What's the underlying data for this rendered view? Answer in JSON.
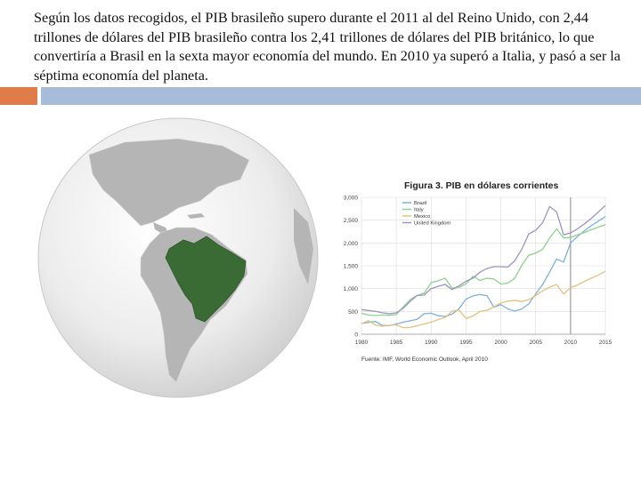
{
  "slide": {
    "paragraph": "Según los datos recogidos, el PIB brasileño supero durante el 2011 al del Reino Unido, con 2,44 trillones de dólares del PIB brasileño contra los 2,41 trillones de dólares del PIB británico, lo que convertiría a Brasil en la sexta mayor economía del mundo. En 2010 ya superó a Italia, y pasó a ser la séptima economía del planeta."
  },
  "colors": {
    "accent_orange": "#e07c4a",
    "accent_blue": "#a7bcd8",
    "brazil_green": "#3a6b35"
  },
  "chart_data": {
    "type": "line",
    "title": "Figura 3. PIB en dólares corrientes",
    "source": "Fuente: IMF, World Economic Outlook, April 2010",
    "xlim": [
      1980,
      2015
    ],
    "ylim": [
      0,
      3000
    ],
    "x_ticks": [
      "1980",
      "1985",
      "1990",
      "1995",
      "2000",
      "2005",
      "2010",
      "2015"
    ],
    "y_ticks": [
      "0",
      "500",
      "1,000",
      "1,500",
      "2,000",
      "2,500",
      "3,000"
    ],
    "grid": true,
    "legend": "top-left",
    "vline": 2010,
    "series": [
      {
        "name": "Brazil",
        "color": "#7eb0dc",
        "x": [
          1980,
          1981,
          1982,
          1983,
          1984,
          1985,
          1986,
          1987,
          1988,
          1989,
          1990,
          1991,
          1992,
          1993,
          1994,
          1995,
          1996,
          1997,
          1998,
          1999,
          2000,
          2001,
          2002,
          2003,
          2004,
          2005,
          2006,
          2007,
          2008,
          2009,
          2010,
          2011,
          2012,
          2013,
          2014,
          2015
        ],
        "y": [
          235,
          260,
          280,
          190,
          190,
          222,
          265,
          295,
          330,
          450,
          460,
          405,
          390,
          440,
          560,
          770,
          840,
          870,
          845,
          590,
          650,
          555,
          505,
          555,
          665,
          880,
          1090,
          1365,
          1650,
          1580,
          2000,
          2140,
          2270,
          2380,
          2480,
          2580
        ]
      },
      {
        "name": "Italy",
        "color": "#8ed08e",
        "x": [
          1980,
          1981,
          1982,
          1983,
          1984,
          1985,
          1986,
          1987,
          1988,
          1989,
          1990,
          1991,
          1992,
          1993,
          1994,
          1995,
          1996,
          1997,
          1998,
          1999,
          2000,
          2001,
          2002,
          2003,
          2004,
          2005,
          2006,
          2007,
          2008,
          2009,
          2010,
          2011,
          2012,
          2013,
          2014,
          2015
        ],
        "y": [
          460,
          420,
          410,
          420,
          415,
          430,
          600,
          760,
          850,
          900,
          1130,
          1170,
          1230,
          1010,
          1030,
          1100,
          1270,
          1180,
          1230,
          1210,
          1100,
          1120,
          1230,
          1510,
          1730,
          1780,
          1860,
          2110,
          2310,
          2110,
          2120,
          2180,
          2230,
          2290,
          2350,
          2400
        ]
      },
      {
        "name": "Mexico",
        "color": "#e3c27c",
        "x": [
          1980,
          1981,
          1982,
          1983,
          1984,
          1985,
          1986,
          1987,
          1988,
          1989,
          1990,
          1991,
          1992,
          1993,
          1994,
          1995,
          1996,
          1997,
          1998,
          1999,
          2000,
          2001,
          2002,
          2003,
          2004,
          2005,
          2006,
          2007,
          2008,
          2009,
          2010,
          2011,
          2012,
          2013,
          2014,
          2015
        ],
        "y": [
          230,
          300,
          200,
          175,
          195,
          205,
          145,
          150,
          185,
          225,
          265,
          320,
          365,
          505,
          530,
          345,
          400,
          500,
          525,
          600,
          685,
          725,
          745,
          715,
          760,
          850,
          950,
          1030,
          1090,
          880,
          1020,
          1080,
          1160,
          1230,
          1300,
          1380
        ]
      },
      {
        "name": "United Kingdom",
        "color": "#9c95bf",
        "x": [
          1980,
          1981,
          1982,
          1983,
          1984,
          1985,
          1986,
          1987,
          1988,
          1989,
          1990,
          1991,
          1992,
          1993,
          1994,
          1995,
          1996,
          1997,
          1998,
          1999,
          2000,
          2001,
          2002,
          2003,
          2004,
          2005,
          2006,
          2007,
          2008,
          2009,
          2010,
          2011,
          2012,
          2013,
          2014,
          2015
        ],
        "y": [
          540,
          520,
          500,
          470,
          450,
          470,
          570,
          720,
          850,
          860,
          1000,
          1050,
          1090,
          980,
          1060,
          1160,
          1230,
          1360,
          1440,
          1480,
          1480,
          1470,
          1610,
          1860,
          2200,
          2280,
          2440,
          2800,
          2680,
          2180,
          2220,
          2310,
          2420,
          2540,
          2680,
          2820
        ]
      }
    ]
  }
}
